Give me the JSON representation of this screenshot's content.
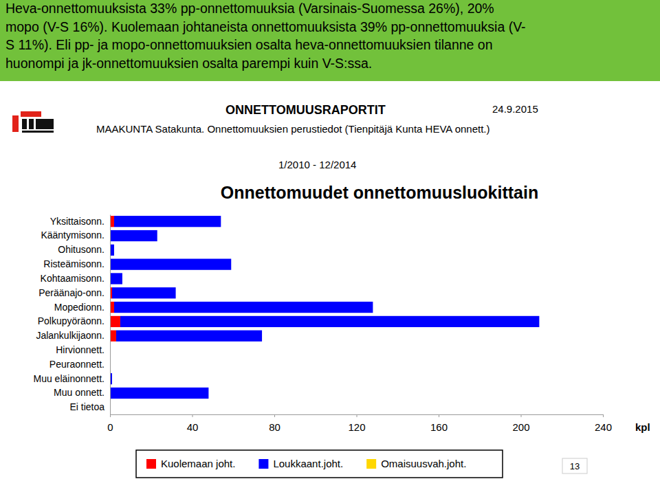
{
  "header_lines": [
    "Heva-onnettomuuksista 33% pp-onnettomuuksia (Varsinais-Suomessa 26%), 20%",
    "mopo (V-S 16%). Kuolemaan johtaneista onnettomuuksista 39% pp-onnettomuuksia (V-",
    "S 11%). Eli pp- ja mopo-onnettomuuksien osalta heva-onnettomuuksien tilanne on",
    "huonompi ja jk-onnettomuuksien osalta parempi kuin V-S:ssa."
  ],
  "report": {
    "title": "ONNETTOMUUSRAPORTIT",
    "date": "24.9.2015",
    "description": "MAAKUNTA Satakunta. Onnettomuuksien perustiedot (Tienpitäjä Kunta HEVA onnett.)",
    "period": "1/2010 - 12/2014",
    "page": 13
  },
  "chart_data": {
    "type": "bar",
    "orientation": "horizontal",
    "stacked": true,
    "title": "Onnettomuudet onnettomuusluokittain",
    "xlabel": "kpl",
    "categories": [
      "Yksittaisonn.",
      "Kääntymisonn.",
      "Ohitusonn.",
      "Risteämisonn.",
      "Kohtaamisonn.",
      "Peräänajo-onn.",
      "Mopedionn.",
      "Polkupyöräonn.",
      "Jalankulkijaonn.",
      "Hirvionnett.",
      "Peuraonnett.",
      "Muu eläinonnett.",
      "Muu onnett.",
      "Ei tietoa"
    ],
    "series": [
      {
        "name": "Kuolemaan joht.",
        "color": "#ff0000",
        "values": [
          2,
          0,
          0,
          0,
          0,
          1,
          2,
          5,
          3,
          0,
          0,
          0,
          0,
          0
        ]
      },
      {
        "name": "Loukkaant.joht.",
        "color": "#0000ff",
        "values": [
          52,
          23,
          2,
          59,
          6,
          31,
          126,
          204,
          71,
          0,
          0,
          1,
          48,
          0
        ]
      },
      {
        "name": "Omaisuusvah.joht.",
        "color": "#ffd700",
        "values": [
          0,
          0,
          0,
          0,
          0,
          0,
          0,
          0,
          0,
          0,
          0,
          0,
          0,
          0
        ]
      }
    ],
    "xlim": [
      0,
      240
    ],
    "xticks": [
      0,
      40,
      80,
      120,
      160,
      200,
      240
    ],
    "grid": false,
    "legend": "bottom"
  }
}
